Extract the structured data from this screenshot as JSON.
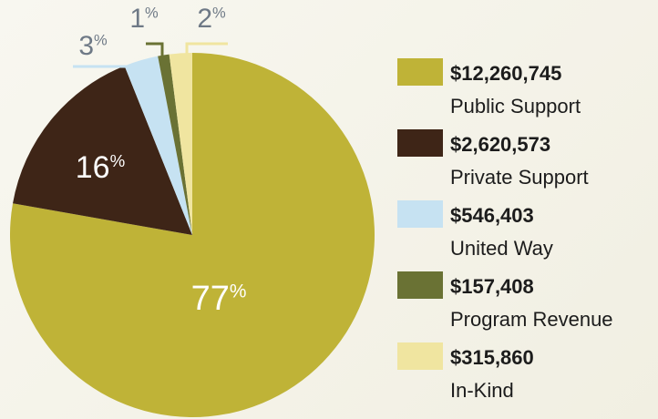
{
  "chart_data": {
    "type": "pie",
    "categories": [
      "Public Support",
      "Private Support",
      "United Way",
      "Program Revenue",
      "In-Kind"
    ],
    "values": [
      77,
      16,
      3,
      1,
      2
    ],
    "unit": "%",
    "amounts": [
      "$12,260,745",
      "$2,620,573",
      "$546,403",
      "$157,408",
      "$315,860"
    ],
    "colors": [
      "#bfb337",
      "#3e2517",
      "#c6e2f2",
      "#6a7234",
      "#f0e5a0"
    ]
  }
}
